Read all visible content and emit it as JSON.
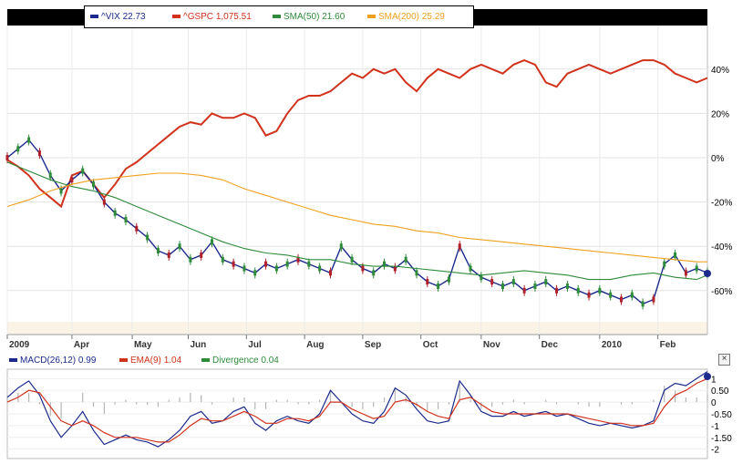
{
  "legend": [
    {
      "label": "^VIX",
      "value": "22.73",
      "color": "#1b2a8c"
    },
    {
      "label": "^GSPC",
      "value": "1,075.51",
      "color": "#d0321c"
    },
    {
      "label": "SMA(50)",
      "value": "21.60",
      "color": "#2e8b3a"
    },
    {
      "label": "SMA(200)",
      "value": "25.29",
      "color": "#f0a020"
    }
  ],
  "macd_legend": [
    {
      "label": "MACD(26,12)",
      "value": "0.99",
      "color": "#1b2a8c"
    },
    {
      "label": "EMA(9)",
      "value": "1.04",
      "color": "#d0321c"
    },
    {
      "label": "Divergence",
      "value": "0.04",
      "color": "#2e8b3a"
    }
  ],
  "close_label": "×",
  "chart_data": [
    {
      "type": "line",
      "title": "",
      "xlabel": "",
      "ylabel": "",
      "x_tick_labels": [
        "2009",
        "Apr",
        "May",
        "Jun",
        "Jul",
        "Aug",
        "Sep",
        "Oct",
        "Nov",
        "Dec",
        "2010",
        "Feb"
      ],
      "y_tick_labels": [
        "40%",
        "20%",
        "0%",
        "-20%",
        "-40%",
        "-60%"
      ],
      "ylim": [
        -75,
        60
      ],
      "grid": true,
      "series": [
        {
          "name": "^GSPC",
          "color": "#d0321c",
          "x": [
            0,
            5,
            10,
            15,
            20,
            25,
            30,
            35,
            40,
            45,
            50,
            55,
            60,
            65,
            70,
            75,
            80,
            85,
            90,
            95,
            100,
            105,
            110,
            115,
            120,
            125,
            130,
            135,
            140,
            145,
            150,
            155,
            160,
            165,
            170,
            175,
            180,
            185,
            190,
            195,
            200,
            205,
            210,
            215,
            220,
            225,
            230,
            235,
            240,
            245,
            250,
            255,
            260,
            265,
            270,
            275,
            280,
            285,
            290,
            295,
            300,
            305,
            310,
            315,
            320,
            325
          ],
          "y": [
            -1,
            -4,
            -8,
            -14,
            -18,
            -22,
            -8,
            -6,
            -12,
            -18,
            -12,
            -5,
            -2,
            2,
            6,
            10,
            14,
            16,
            15,
            20,
            18,
            18,
            20,
            18,
            10,
            12,
            20,
            26,
            28,
            28,
            30,
            34,
            38,
            36,
            40,
            38,
            40,
            34,
            30,
            36,
            40,
            38,
            36,
            40,
            42,
            40,
            38,
            42,
            44,
            42,
            34,
            32,
            38,
            40,
            42,
            40,
            38,
            40,
            42,
            44,
            44,
            42,
            38,
            36,
            34,
            36
          ]
        },
        {
          "name": "^VIX",
          "color": "#1b2a8c",
          "x": [
            0,
            5,
            10,
            15,
            20,
            25,
            30,
            35,
            40,
            45,
            50,
            55,
            60,
            65,
            70,
            75,
            80,
            85,
            90,
            95,
            100,
            105,
            110,
            115,
            120,
            125,
            130,
            135,
            140,
            145,
            150,
            155,
            160,
            165,
            170,
            175,
            180,
            185,
            190,
            195,
            200,
            205,
            210,
            215,
            220,
            225,
            230,
            235,
            240,
            245,
            250,
            255,
            260,
            265,
            270,
            275,
            280,
            285,
            290,
            295,
            300,
            305,
            310,
            315,
            320,
            325
          ],
          "y": [
            0,
            4,
            8,
            2,
            -8,
            -15,
            -10,
            -6,
            -12,
            -20,
            -25,
            -28,
            -32,
            -36,
            -42,
            -44,
            -40,
            -46,
            -44,
            -38,
            -46,
            -48,
            -50,
            -52,
            -48,
            -50,
            -48,
            -46,
            -48,
            -50,
            -52,
            -40,
            -46,
            -50,
            -52,
            -48,
            -50,
            -46,
            -52,
            -56,
            -58,
            -55,
            -40,
            -50,
            -54,
            -56,
            -58,
            -56,
            -60,
            -58,
            -56,
            -60,
            -58,
            -60,
            -62,
            -60,
            -62,
            -64,
            -62,
            -66,
            -64,
            -48,
            -44,
            -52,
            -50,
            -52
          ]
        },
        {
          "name": "SMA(50)",
          "color": "#2e8b3a",
          "x": [
            0,
            10,
            20,
            30,
            40,
            50,
            60,
            70,
            80,
            90,
            100,
            110,
            120,
            130,
            140,
            150,
            160,
            170,
            180,
            190,
            200,
            210,
            220,
            230,
            240,
            250,
            260,
            270,
            280,
            290,
            300,
            310,
            320,
            325
          ],
          "y": [
            -2,
            -6,
            -10,
            -13,
            -15,
            -18,
            -22,
            -26,
            -30,
            -34,
            -38,
            -41,
            -43,
            -44,
            -46,
            -46,
            -48,
            -49,
            -49,
            -50,
            -51,
            -52,
            -53,
            -52,
            -51,
            -52,
            -53,
            -55,
            -55,
            -53,
            -52,
            -54,
            -55,
            -53
          ]
        },
        {
          "name": "SMA(200)",
          "color": "#f0a020",
          "x": [
            0,
            10,
            20,
            30,
            40,
            50,
            60,
            70,
            80,
            90,
            100,
            110,
            120,
            130,
            140,
            150,
            160,
            170,
            180,
            190,
            200,
            210,
            220,
            230,
            240,
            250,
            260,
            270,
            280,
            290,
            300,
            310,
            320,
            325
          ],
          "y": [
            -22,
            -19,
            -15,
            -12,
            -10,
            -9,
            -8,
            -7,
            -7,
            -8,
            -10,
            -14,
            -17,
            -20,
            -23,
            -26,
            -28,
            -30,
            -31,
            -33,
            -34,
            -36,
            -37,
            -38,
            -39,
            -40,
            -41,
            -42,
            -43,
            -44,
            -45,
            -46,
            -47,
            -47
          ]
        }
      ]
    },
    {
      "type": "line",
      "title": "",
      "y_tick_labels": [
        "1",
        "0.50",
        "0",
        "-0.50",
        "-1",
        "-1.50",
        "-2"
      ],
      "ylim": [
        -2.4,
        1.4
      ],
      "grid": true,
      "series": [
        {
          "name": "MACD(26,12)",
          "color": "#1b2a8c",
          "x": [
            0,
            5,
            10,
            15,
            20,
            25,
            30,
            35,
            40,
            45,
            50,
            55,
            60,
            65,
            70,
            75,
            80,
            85,
            90,
            95,
            100,
            105,
            110,
            115,
            120,
            125,
            130,
            135,
            140,
            145,
            150,
            155,
            160,
            165,
            170,
            175,
            180,
            185,
            190,
            195,
            200,
            205,
            210,
            215,
            220,
            225,
            230,
            235,
            240,
            245,
            250,
            255,
            260,
            265,
            270,
            275,
            280,
            285,
            290,
            295,
            300,
            305,
            310,
            315,
            320,
            325
          ],
          "y": [
            0.2,
            0.6,
            0.9,
            0.3,
            -0.8,
            -1.5,
            -1.0,
            -0.4,
            -1.2,
            -1.8,
            -1.6,
            -1.4,
            -1.6,
            -1.7,
            -1.9,
            -1.6,
            -1.2,
            -0.6,
            -0.4,
            -0.9,
            -0.8,
            -0.4,
            -0.2,
            -0.9,
            -1.2,
            -0.8,
            -0.6,
            -0.8,
            -0.9,
            -0.5,
            0.5,
            0.0,
            -0.5,
            -0.8,
            -0.9,
            -0.4,
            0.6,
            0.3,
            -0.3,
            -0.8,
            -0.9,
            -0.8,
            0.9,
            0.3,
            -0.4,
            -0.6,
            -0.6,
            -0.4,
            -0.6,
            -0.5,
            -0.4,
            -0.6,
            -0.5,
            -0.7,
            -0.9,
            -1.0,
            -0.9,
            -1.0,
            -1.1,
            -1.0,
            -0.8,
            0.5,
            0.8,
            0.7,
            1.0,
            1.3
          ]
        },
        {
          "name": "EMA(9)",
          "color": "#d0321c",
          "x": [
            0,
            5,
            10,
            15,
            20,
            25,
            30,
            35,
            40,
            45,
            50,
            55,
            60,
            65,
            70,
            75,
            80,
            85,
            90,
            95,
            100,
            105,
            110,
            115,
            120,
            125,
            130,
            135,
            140,
            145,
            150,
            155,
            160,
            165,
            170,
            175,
            180,
            185,
            190,
            195,
            200,
            205,
            210,
            215,
            220,
            225,
            230,
            235,
            240,
            245,
            250,
            255,
            260,
            265,
            270,
            275,
            280,
            285,
            290,
            295,
            300,
            305,
            310,
            315,
            320,
            325
          ],
          "y": [
            0.0,
            0.2,
            0.5,
            0.4,
            -0.2,
            -0.8,
            -1.0,
            -0.8,
            -1.0,
            -1.3,
            -1.5,
            -1.5,
            -1.5,
            -1.6,
            -1.7,
            -1.7,
            -1.4,
            -1.0,
            -0.7,
            -0.8,
            -0.8,
            -0.6,
            -0.4,
            -0.6,
            -0.9,
            -0.9,
            -0.7,
            -0.7,
            -0.8,
            -0.6,
            0.0,
            0.0,
            -0.3,
            -0.5,
            -0.7,
            -0.6,
            0.0,
            0.1,
            -0.1,
            -0.4,
            -0.6,
            -0.7,
            0.1,
            0.2,
            -0.1,
            -0.4,
            -0.5,
            -0.5,
            -0.5,
            -0.5,
            -0.5,
            -0.5,
            -0.5,
            -0.6,
            -0.7,
            -0.8,
            -0.9,
            -0.9,
            -1.0,
            -1.0,
            -0.9,
            -0.2,
            0.3,
            0.5,
            0.8,
            1.0
          ]
        },
        {
          "name": "Divergence",
          "color": "#2e8b3a",
          "x": [
            0,
            5,
            10,
            15,
            20,
            25,
            30,
            35,
            40,
            45,
            50,
            55,
            60,
            65,
            70,
            75,
            80,
            85,
            90,
            95,
            100,
            105,
            110,
            115,
            120,
            125,
            130,
            135,
            140,
            145,
            150,
            155,
            160,
            165,
            170,
            175,
            180,
            185,
            190,
            195,
            200,
            205,
            210,
            215,
            220,
            225,
            230,
            235,
            240,
            245,
            250,
            255,
            260,
            265,
            270,
            275,
            280,
            285,
            290,
            295,
            300,
            305,
            310,
            315,
            320,
            325
          ],
          "y": [
            0.2,
            0.4,
            0.4,
            -0.1,
            -0.6,
            -0.7,
            0.0,
            0.4,
            -0.2,
            -0.5,
            -0.1,
            0.1,
            -0.1,
            -0.1,
            -0.2,
            0.1,
            0.2,
            0.4,
            0.3,
            -0.1,
            0.0,
            0.2,
            0.2,
            -0.3,
            -0.3,
            0.1,
            0.1,
            -0.1,
            -0.1,
            0.1,
            0.5,
            0.0,
            -0.2,
            -0.3,
            -0.2,
            0.2,
            0.6,
            0.2,
            -0.2,
            -0.4,
            -0.3,
            -0.1,
            0.8,
            0.1,
            -0.3,
            -0.2,
            -0.1,
            0.1,
            -0.1,
            0.0,
            0.1,
            -0.1,
            0.0,
            -0.1,
            -0.2,
            -0.2,
            0.0,
            -0.1,
            -0.1,
            0.0,
            0.1,
            0.7,
            0.5,
            0.2,
            0.2,
            0.3
          ]
        }
      ]
    }
  ]
}
